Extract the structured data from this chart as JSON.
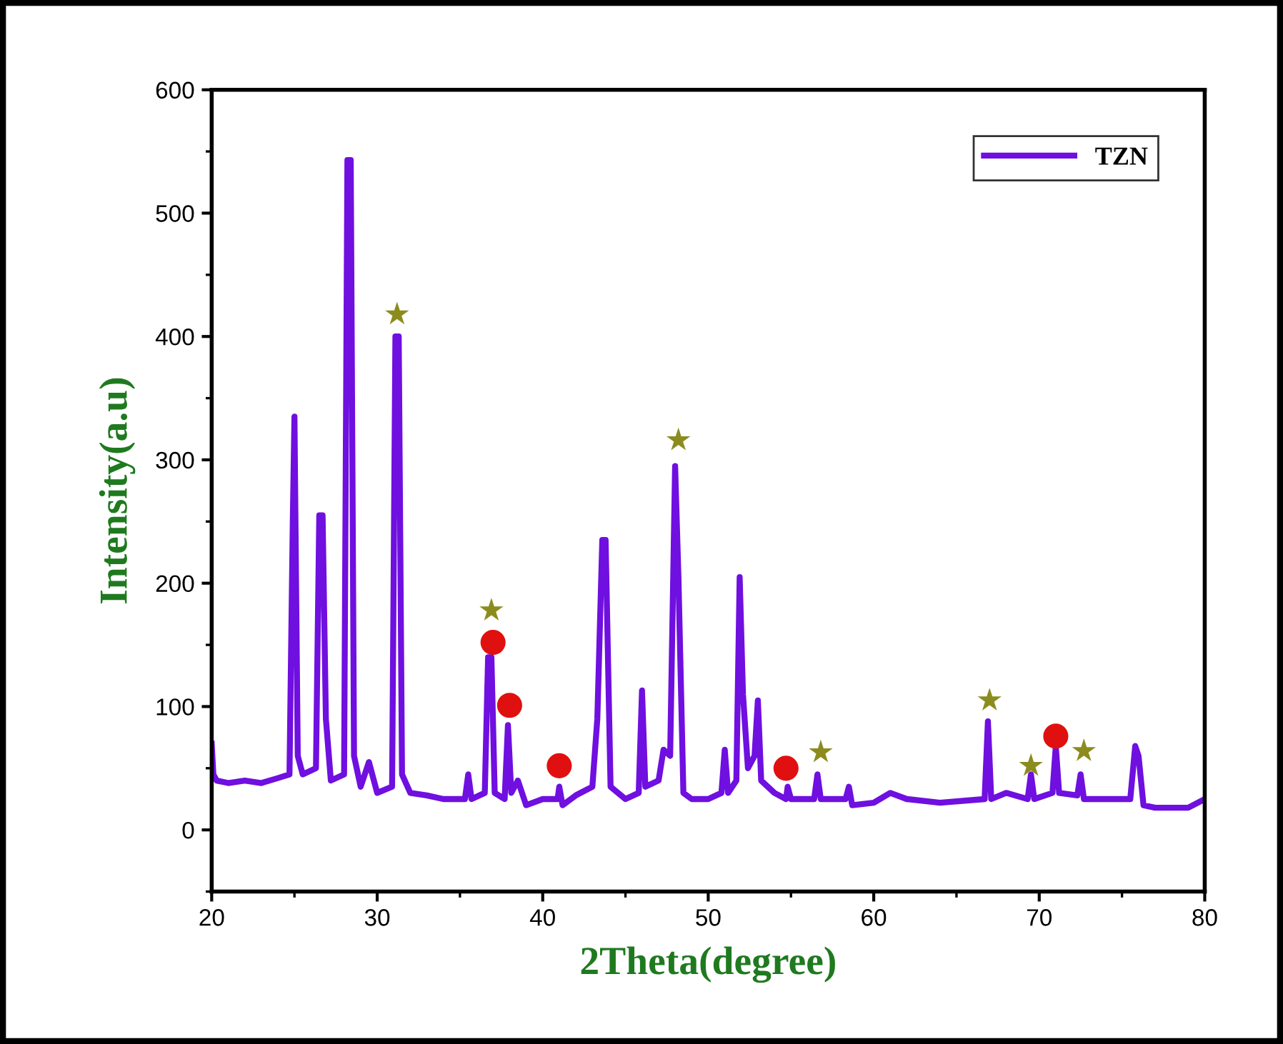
{
  "chart_data": {
    "type": "line",
    "xlabel": "2Theta(degree)",
    "ylabel": "Intensity(a.u)",
    "xlim": [
      20,
      80
    ],
    "ylim": [
      -50,
      600
    ],
    "xticks": [
      20,
      30,
      40,
      50,
      60,
      70,
      80
    ],
    "yticks": [
      0,
      100,
      200,
      300,
      400,
      500,
      600
    ],
    "legend": "top right",
    "grid": false,
    "series": [
      {
        "name": "TZN",
        "color": "#6f0fe0",
        "marker": "none",
        "x": [
          20,
          20.1,
          20.3,
          21,
          22,
          23,
          24,
          24.7,
          24.9,
          25.0,
          25.2,
          25.5,
          26.3,
          26.5,
          26.7,
          26.9,
          27.2,
          28.0,
          28.2,
          28.4,
          28.6,
          29.0,
          29.5,
          30.0,
          30.9,
          31.1,
          31.3,
          31.5,
          32,
          33,
          34,
          35.3,
          35.5,
          35.7,
          36.5,
          36.7,
          36.9,
          37.1,
          37.7,
          37.9,
          38.1,
          38.5,
          39,
          40,
          40.9,
          41.0,
          41.2,
          42,
          43.0,
          43.3,
          43.6,
          43.8,
          44.1,
          45,
          45.8,
          46.0,
          46.2,
          47.0,
          47.3,
          47.7,
          48.0,
          48.2,
          48.5,
          49,
          50,
          50.8,
          51.0,
          51.2,
          51.7,
          51.9,
          52.1,
          52.4,
          52.8,
          53.0,
          53.2,
          54,
          54.7,
          54.8,
          55.0,
          56.4,
          56.6,
          56.8,
          58.3,
          58.5,
          58.7,
          60,
          61,
          62,
          64,
          66.7,
          66.9,
          67.1,
          68,
          69.3,
          69.5,
          69.7,
          70.8,
          71.0,
          71.2,
          72.3,
          72.5,
          72.7,
          75.5,
          75.8,
          76.0,
          76.3,
          77,
          79,
          80
        ],
        "values": [
          70,
          45,
          40,
          38,
          40,
          38,
          42,
          45,
          250,
          335,
          60,
          45,
          50,
          255,
          255,
          90,
          40,
          45,
          543,
          543,
          60,
          35,
          55,
          30,
          35,
          400,
          400,
          45,
          30,
          28,
          25,
          25,
          45,
          25,
          30,
          140,
          140,
          30,
          25,
          85,
          30,
          40,
          20,
          25,
          25,
          35,
          20,
          28,
          35,
          90,
          235,
          235,
          35,
          25,
          30,
          113,
          35,
          40,
          65,
          60,
          295,
          205,
          30,
          25,
          25,
          30,
          65,
          30,
          40,
          205,
          110,
          50,
          60,
          105,
          40,
          30,
          25,
          35,
          25,
          25,
          45,
          25,
          25,
          35,
          20,
          22,
          30,
          25,
          22,
          25,
          88,
          25,
          30,
          25,
          45,
          25,
          30,
          68,
          30,
          28,
          45,
          25,
          25,
          68,
          60,
          20,
          18,
          18,
          25
        ]
      },
      {
        "type": "scatter",
        "color": "#8c8c1e",
        "marker": "star",
        "x": [
          31.2,
          36.9,
          48.2,
          56.8,
          67.0,
          69.5,
          72.7
        ],
        "values": [
          418,
          178,
          316,
          63,
          105,
          52,
          64
        ]
      },
      {
        "type": "scatter",
        "color": "#e01010",
        "marker": "circle",
        "x": [
          37.0,
          38.0,
          41.0,
          54.7,
          71.0
        ],
        "values": [
          152,
          101,
          52,
          50,
          76
        ]
      }
    ]
  }
}
